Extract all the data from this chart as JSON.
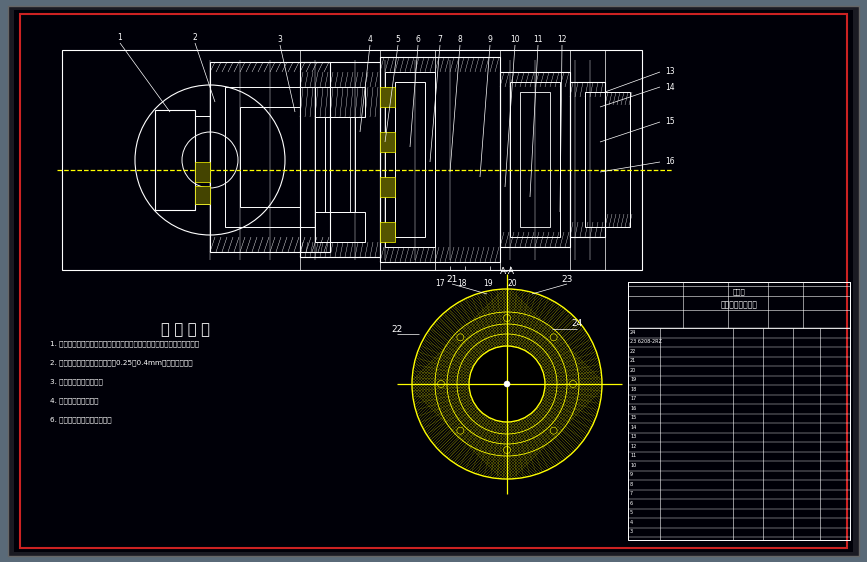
{
  "bg_color": "#000000",
  "outer_bg": "#5a6a78",
  "border_color": "#cc2222",
  "line_color": "#ffffff",
  "yellow_color": "#ffff00",
  "title_text": "技 术 要 求",
  "tech_notes": [
    "1. 装配前，轴承用汽油清洗；其它零件用柴油清洗，筱体内部涂耔油湆潆；",
    "2. 轴承安装面通过调整坠片获得0.25～0.4mm的齿侧隙间隙；",
    "3. 轴承采用润滑脂润滑；",
    "4. 外表面涂白色油漆；",
    "6. 各密封处不得有漏油现象。"
  ],
  "figsize": [
    8.67,
    5.62
  ],
  "dpi": 100
}
